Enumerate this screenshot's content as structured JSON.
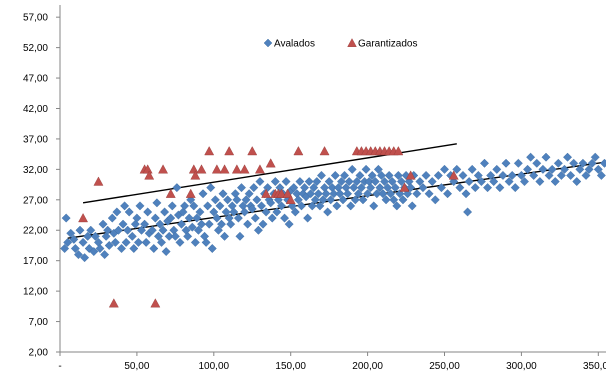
{
  "chart_data": {
    "type": "scatter",
    "title": "",
    "xlabel": "",
    "ylabel": "",
    "xlim": [
      0,
      355
    ],
    "ylim": [
      2,
      59
    ],
    "x_ticks": [
      0,
      50,
      100,
      150,
      200,
      250,
      300,
      350
    ],
    "x_tick_labels": [
      "-",
      "50,00",
      "100,00",
      "150,00",
      "200,00",
      "250,00",
      "300,00",
      "350,00"
    ],
    "y_ticks": [
      2,
      7,
      12,
      17,
      22,
      27,
      32,
      37,
      42,
      47,
      52,
      57
    ],
    "y_tick_labels": [
      "2,00",
      "7,00",
      "12,00",
      "17,00",
      "22,00",
      "27,00",
      "32,00",
      "37,00",
      "42,00",
      "47,00",
      "52,00",
      "57,00"
    ],
    "grid": false,
    "legend_position": "top-center",
    "series": [
      {
        "name": "Avalados",
        "marker": "diamond",
        "color": "#4f81bd",
        "points": [
          [
            3,
            19
          ],
          [
            4,
            24
          ],
          [
            5,
            20
          ],
          [
            7,
            21.5
          ],
          [
            9,
            20.5
          ],
          [
            10,
            19
          ],
          [
            12,
            18
          ],
          [
            13,
            22
          ],
          [
            15,
            20
          ],
          [
            16,
            17.5
          ],
          [
            18,
            21
          ],
          [
            19,
            19
          ],
          [
            20,
            22
          ],
          [
            22,
            18.5
          ],
          [
            23,
            21
          ],
          [
            25,
            20
          ],
          [
            26,
            19
          ],
          [
            28,
            23
          ],
          [
            29,
            18
          ],
          [
            30,
            21
          ],
          [
            31,
            22
          ],
          [
            32,
            19.5
          ],
          [
            34,
            24
          ],
          [
            35,
            21.5
          ],
          [
            36,
            20
          ],
          [
            37,
            25
          ],
          [
            38,
            22
          ],
          [
            40,
            19
          ],
          [
            41,
            23
          ],
          [
            42,
            26
          ],
          [
            43,
            20
          ],
          [
            44,
            22
          ],
          [
            45,
            25
          ],
          [
            47,
            21
          ],
          [
            48,
            19
          ],
          [
            49,
            23
          ],
          [
            50,
            24
          ],
          [
            51,
            20
          ],
          [
            52,
            26
          ],
          [
            53,
            22
          ],
          [
            55,
            23
          ],
          [
            56,
            20
          ],
          [
            57,
            25
          ],
          [
            58,
            21.5
          ],
          [
            60,
            22
          ],
          [
            61,
            19
          ],
          [
            62,
            24
          ],
          [
            63,
            26.5
          ],
          [
            64,
            21
          ],
          [
            65,
            23
          ],
          [
            66,
            20
          ],
          [
            67,
            22
          ],
          [
            68,
            25
          ],
          [
            69,
            18.5
          ],
          [
            70,
            23.5
          ],
          [
            71,
            21
          ],
          [
            72,
            24
          ],
          [
            73,
            26
          ],
          [
            74,
            22
          ],
          [
            75,
            21
          ],
          [
            76,
            29
          ],
          [
            77,
            24.5
          ],
          [
            78,
            20
          ],
          [
            79,
            23
          ],
          [
            80,
            25
          ],
          [
            81,
            26
          ],
          [
            82,
            22
          ],
          [
            83,
            21
          ],
          [
            84,
            24
          ],
          [
            85,
            27
          ],
          [
            86,
            22.5
          ],
          [
            87,
            26
          ],
          [
            88,
            20
          ],
          [
            89,
            24
          ],
          [
            90,
            22
          ],
          [
            91,
            25
          ],
          [
            92,
            23
          ],
          [
            93,
            28
          ],
          [
            94,
            21
          ],
          [
            95,
            20
          ],
          [
            96,
            26
          ],
          [
            97,
            23
          ],
          [
            98,
            29
          ],
          [
            99,
            19
          ],
          [
            100,
            25
          ],
          [
            101,
            27
          ],
          [
            102,
            24
          ],
          [
            103,
            22
          ],
          [
            104,
            26
          ],
          [
            105,
            23
          ],
          [
            106,
            28
          ],
          [
            107,
            21
          ],
          [
            108,
            25
          ],
          [
            109,
            27
          ],
          [
            110,
            24
          ],
          [
            111,
            23
          ],
          [
            112,
            26
          ],
          [
            113,
            25
          ],
          [
            114,
            28
          ],
          [
            115,
            27
          ],
          [
            116,
            24
          ],
          [
            117,
            21
          ],
          [
            118,
            29
          ],
          [
            119,
            26
          ],
          [
            120,
            25
          ],
          [
            121,
            27
          ],
          [
            122,
            23
          ],
          [
            123,
            28
          ],
          [
            124,
            26
          ],
          [
            125,
            25.5
          ],
          [
            126,
            29
          ],
          [
            127,
            24
          ],
          [
            128,
            27
          ],
          [
            129,
            22
          ],
          [
            130,
            30
          ],
          [
            131,
            26
          ],
          [
            132,
            23
          ],
          [
            133,
            28
          ],
          [
            134,
            25
          ],
          [
            135,
            29
          ],
          [
            136,
            27
          ],
          [
            137,
            26.5
          ],
          [
            138,
            24
          ],
          [
            139,
            28
          ],
          [
            140,
            30
          ],
          [
            141,
            25
          ],
          [
            142,
            27
          ],
          [
            143,
            29
          ],
          [
            144,
            26
          ],
          [
            145,
            28
          ],
          [
            146,
            24
          ],
          [
            147,
            30
          ],
          [
            148,
            27
          ],
          [
            149,
            23
          ],
          [
            150,
            28.5
          ],
          [
            151,
            26
          ],
          [
            152,
            29
          ],
          [
            153,
            25
          ],
          [
            154,
            28
          ],
          [
            155,
            27
          ],
          [
            156,
            30
          ],
          [
            157,
            26
          ],
          [
            158,
            28
          ],
          [
            159,
            29
          ],
          [
            160,
            27.5
          ],
          [
            161,
            24
          ],
          [
            162,
            30
          ],
          [
            163,
            28
          ],
          [
            164,
            26
          ],
          [
            165,
            29
          ],
          [
            166,
            27
          ],
          [
            167,
            30
          ],
          [
            168,
            28
          ],
          [
            169,
            26
          ],
          [
            170,
            31
          ],
          [
            171,
            27
          ],
          [
            172,
            29
          ],
          [
            173,
            28
          ],
          [
            174,
            25
          ],
          [
            175,
            30
          ],
          [
            176,
            27
          ],
          [
            177,
            29
          ],
          [
            178,
            28
          ],
          [
            179,
            31
          ],
          [
            180,
            26
          ],
          [
            181,
            29
          ],
          [
            182,
            28
          ],
          [
            183,
            30
          ],
          [
            184,
            27
          ],
          [
            185,
            31
          ],
          [
            186,
            29
          ],
          [
            187,
            28
          ],
          [
            188,
            30
          ],
          [
            189,
            26
          ],
          [
            190,
            32
          ],
          [
            191,
            29
          ],
          [
            192,
            27
          ],
          [
            193,
            30
          ],
          [
            194,
            28
          ],
          [
            195,
            31
          ],
          [
            196,
            29
          ],
          [
            197,
            27
          ],
          [
            198,
            30
          ],
          [
            199,
            32
          ],
          [
            200,
            28
          ],
          [
            201,
            30
          ],
          [
            202,
            29
          ],
          [
            203,
            31
          ],
          [
            204,
            26
          ],
          [
            205,
            30
          ],
          [
            206,
            28
          ],
          [
            207,
            32
          ],
          [
            208,
            29
          ],
          [
            209,
            31
          ],
          [
            210,
            28
          ],
          [
            211,
            30
          ],
          [
            212,
            27
          ],
          [
            213,
            29
          ],
          [
            214,
            31
          ],
          [
            215,
            28
          ],
          [
            216,
            30
          ],
          [
            217,
            27
          ],
          [
            218,
            29
          ],
          [
            219,
            26
          ],
          [
            220,
            31
          ],
          [
            221,
            28
          ],
          [
            222,
            30
          ],
          [
            223,
            27
          ],
          [
            224,
            29
          ],
          [
            225,
            31
          ],
          [
            226,
            28
          ],
          [
            227,
            30
          ],
          [
            228,
            29
          ],
          [
            229,
            26
          ],
          [
            230,
            31
          ],
          [
            232,
            28
          ],
          [
            234,
            30
          ],
          [
            236,
            29
          ],
          [
            238,
            31
          ],
          [
            240,
            28
          ],
          [
            242,
            30
          ],
          [
            244,
            27
          ],
          [
            246,
            31
          ],
          [
            248,
            29
          ],
          [
            250,
            32
          ],
          [
            252,
            28
          ],
          [
            254,
            31
          ],
          [
            256,
            30
          ],
          [
            258,
            32
          ],
          [
            260,
            29
          ],
          [
            262,
            31
          ],
          [
            264,
            28
          ],
          [
            265,
            25
          ],
          [
            266,
            30
          ],
          [
            268,
            32
          ],
          [
            270,
            29
          ],
          [
            272,
            31
          ],
          [
            274,
            30
          ],
          [
            276,
            33
          ],
          [
            278,
            29
          ],
          [
            280,
            31
          ],
          [
            282,
            30
          ],
          [
            284,
            32
          ],
          [
            286,
            29
          ],
          [
            288,
            31
          ],
          [
            290,
            33
          ],
          [
            292,
            30
          ],
          [
            294,
            31
          ],
          [
            296,
            29
          ],
          [
            298,
            33
          ],
          [
            300,
            31
          ],
          [
            302,
            30
          ],
          [
            304,
            32
          ],
          [
            306,
            34
          ],
          [
            308,
            31
          ],
          [
            310,
            33
          ],
          [
            312,
            30
          ],
          [
            314,
            32
          ],
          [
            316,
            34
          ],
          [
            318,
            31
          ],
          [
            320,
            32
          ],
          [
            322,
            30
          ],
          [
            324,
            33
          ],
          [
            326,
            31
          ],
          [
            328,
            32
          ],
          [
            330,
            34
          ],
          [
            332,
            31
          ],
          [
            334,
            33
          ],
          [
            336,
            30
          ],
          [
            338,
            32
          ],
          [
            340,
            33
          ],
          [
            342,
            31
          ],
          [
            344,
            32
          ],
          [
            346,
            33
          ],
          [
            348,
            34
          ],
          [
            350,
            32
          ],
          [
            352,
            31
          ],
          [
            354,
            33
          ]
        ]
      },
      {
        "name": "Garantizados",
        "marker": "triangle",
        "color": "#c0504d",
        "points": [
          [
            15,
            24
          ],
          [
            25,
            30
          ],
          [
            35,
            10
          ],
          [
            55,
            32
          ],
          [
            57,
            32
          ],
          [
            58,
            31
          ],
          [
            62,
            10
          ],
          [
            67,
            32
          ],
          [
            72,
            28
          ],
          [
            85,
            28
          ],
          [
            87,
            32
          ],
          [
            88,
            31
          ],
          [
            92,
            32
          ],
          [
            97,
            35
          ],
          [
            102,
            32
          ],
          [
            107,
            32
          ],
          [
            110,
            35
          ],
          [
            115,
            32
          ],
          [
            120,
            32
          ],
          [
            125,
            35
          ],
          [
            130,
            32
          ],
          [
            134,
            28
          ],
          [
            137,
            33
          ],
          [
            140,
            28
          ],
          [
            142,
            28
          ],
          [
            144,
            28
          ],
          [
            148,
            28
          ],
          [
            150,
            27
          ],
          [
            155,
            35
          ],
          [
            172,
            35
          ],
          [
            193,
            35
          ],
          [
            196,
            35
          ],
          [
            199,
            35
          ],
          [
            202,
            35
          ],
          [
            205,
            35
          ],
          [
            208,
            35
          ],
          [
            211,
            35
          ],
          [
            214,
            35
          ],
          [
            217,
            35
          ],
          [
            220,
            35
          ],
          [
            224,
            29
          ],
          [
            228,
            31
          ],
          [
            256,
            31
          ]
        ]
      }
    ],
    "trendlines": [
      {
        "series": "Avalados",
        "from": [
          5,
          20.7
        ],
        "to": [
          355,
          33.2
        ]
      },
      {
        "series": "Garantizados",
        "from": [
          15,
          26.5
        ],
        "to": [
          258,
          36.2
        ]
      }
    ]
  }
}
